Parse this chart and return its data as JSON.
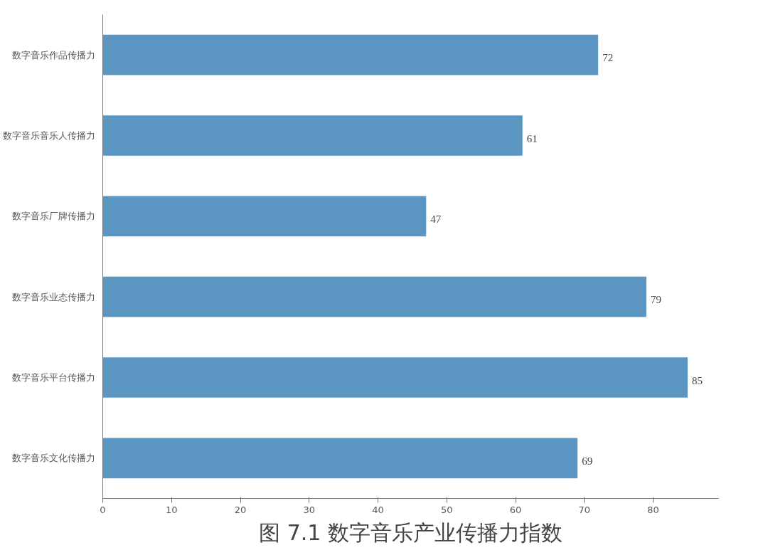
{
  "chart_data": {
    "type": "bar",
    "orientation": "horizontal",
    "title": "图 7.1 数字音乐产业传播力指数",
    "categories": [
      "数字音乐作品传播力",
      "数字音乐音乐人传播力",
      "数字音乐厂牌传播力",
      "数字音乐业态传播力",
      "数字音乐平台传播力",
      "数字音乐文化传播力"
    ],
    "values": [
      72,
      61,
      47,
      79,
      85,
      69
    ],
    "color": "#5b96c2",
    "xlim": [
      0,
      89.5
    ],
    "xticks": [
      0,
      10,
      20,
      30,
      40,
      50,
      60,
      70,
      80
    ],
    "grid": false,
    "data_labels": true
  }
}
